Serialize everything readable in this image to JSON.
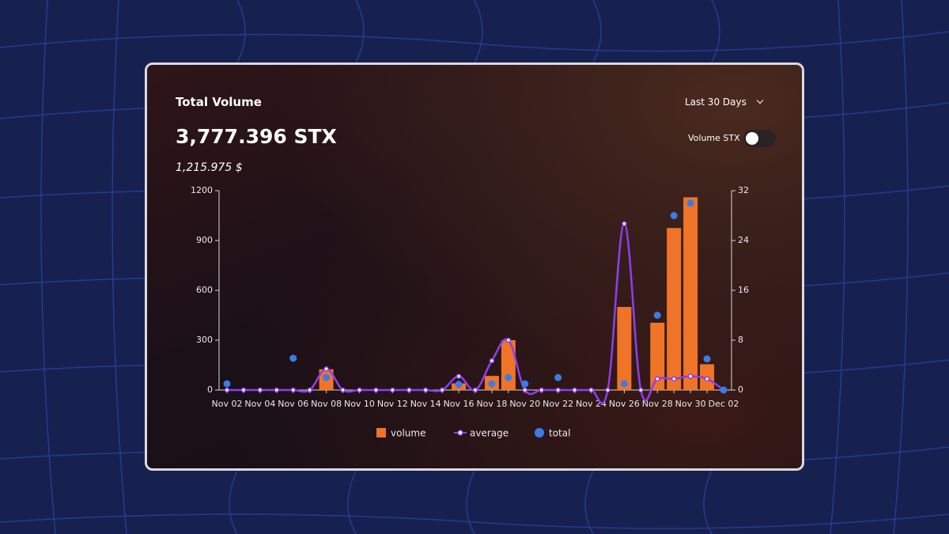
{
  "header": {
    "title": "Total Volume",
    "amount": "3,777.396 STX",
    "amount_usd": "1,215.975 $",
    "period": "Last 30 Days",
    "toggle_label": "Volume STX"
  },
  "chart_data": {
    "type": "bar",
    "categories": [
      "Nov 02",
      null,
      "Nov 04",
      null,
      "Nov 06",
      null,
      "Nov 08",
      null,
      "Nov 10",
      null,
      "Nov 12",
      null,
      "Nov 14",
      null,
      "Nov 16",
      null,
      "Nov 18",
      null,
      "Nov 20",
      null,
      "Nov 22",
      null,
      "Nov 24",
      null,
      "Nov 26",
      null,
      "Nov 28",
      null,
      "Nov 30",
      null,
      "Dec 02"
    ],
    "series": [
      {
        "name": "volume",
        "type": "bar",
        "color": "#f07427",
        "values": [
          0,
          0,
          0,
          0,
          0,
          0,
          125,
          0,
          0,
          0,
          0,
          0,
          0,
          0,
          40,
          0,
          85,
          300,
          0,
          0,
          0,
          0,
          0,
          0,
          500,
          0,
          405,
          975,
          1160,
          155,
          0
        ]
      },
      {
        "name": "average",
        "type": "line",
        "axis": "y2",
        "color": "#8b3ff0",
        "values": [
          0,
          0,
          0,
          0,
          0,
          0,
          3.4,
          0,
          0,
          0,
          0,
          0,
          0,
          0,
          2.2,
          0,
          4.7,
          8,
          0,
          0,
          0,
          0,
          0,
          0,
          26.7,
          0,
          1.8,
          1.8,
          2.2,
          1.8,
          0
        ]
      },
      {
        "name": "total",
        "type": "scatter",
        "axis": "y2",
        "color": "#3b7be8",
        "values": [
          1,
          null,
          null,
          null,
          5.1,
          null,
          2,
          null,
          null,
          null,
          null,
          null,
          null,
          null,
          0.9,
          null,
          1,
          2,
          1,
          null,
          2,
          null,
          null,
          null,
          1,
          null,
          12,
          28,
          30,
          5,
          0
        ]
      }
    ],
    "ylim": [
      0,
      1200
    ],
    "yticks": [
      0,
      300,
      600,
      900,
      1200
    ],
    "y2lim": [
      0,
      32
    ],
    "y2ticks": [
      0,
      8,
      16,
      24,
      32
    ]
  }
}
